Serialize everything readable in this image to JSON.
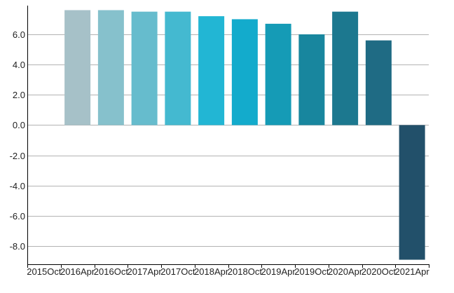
{
  "chart_data": {
    "type": "bar",
    "title": "",
    "xlabel": "",
    "ylabel": "",
    "categories": [
      "2015Oct",
      "2016Apr",
      "2016Oct",
      "2017Apr",
      "2017Oct",
      "2018Apr",
      "2018Oct",
      "2019Apr",
      "2019Oct",
      "2020Apr",
      "2020Oct",
      "2021Apr"
    ],
    "values": [
      null,
      7.6,
      7.6,
      7.5,
      7.5,
      7.2,
      7.0,
      6.7,
      6.0,
      7.5,
      5.6,
      -8.9
    ],
    "colors": [
      "#a6c1c8",
      "#a6c1c8",
      "#86c1cc",
      "#66bccd",
      "#44b9d0",
      "#22b6d4",
      "#13abcc",
      "#159bb6",
      "#18869e",
      "#1c788f",
      "#1f6b84",
      "#22506a"
    ],
    "ylim": [
      -9.2,
      7.9
    ],
    "yticks": [
      -8.0,
      -6.0,
      -4.0,
      -2.0,
      0.0,
      2.0,
      4.0,
      6.0
    ],
    "ytick_labels": [
      "-8.0",
      "-6.0",
      "-4.0",
      "-2.0",
      "0.0",
      "2.0",
      "4.0",
      "6.0"
    ],
    "grid": true,
    "legend": "none"
  }
}
